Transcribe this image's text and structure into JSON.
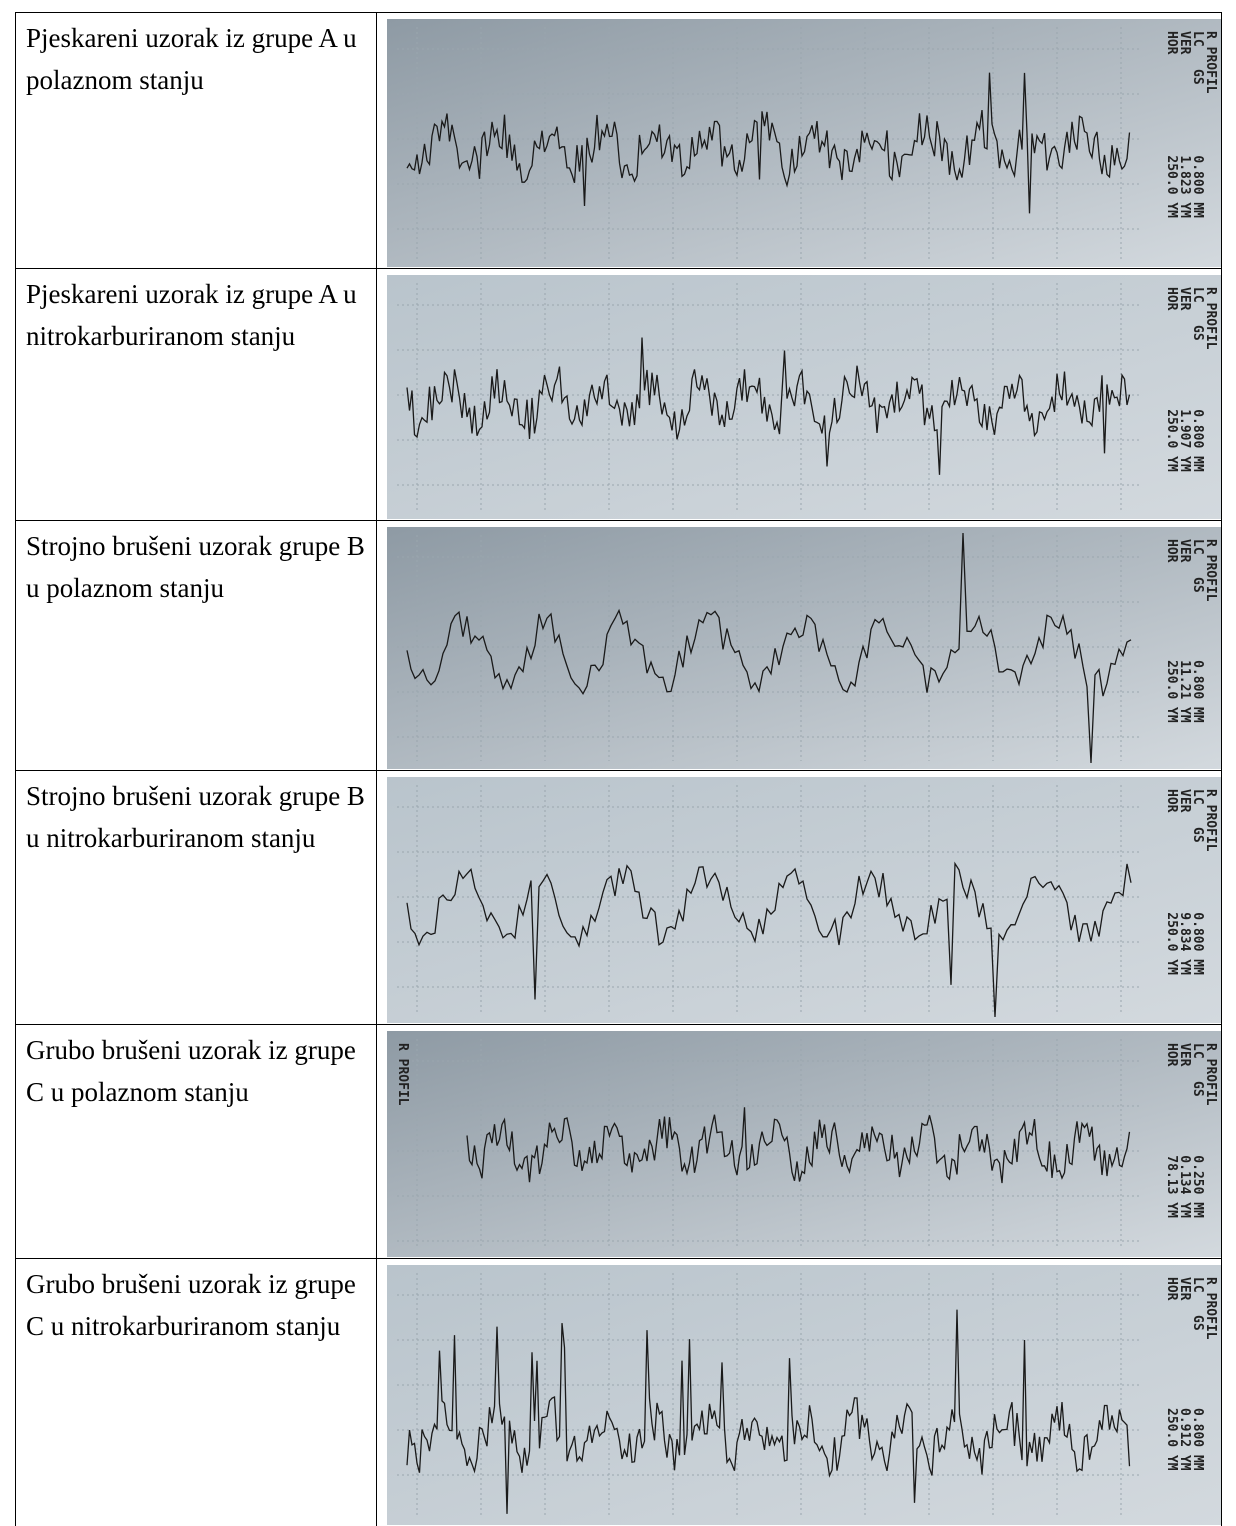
{
  "table": {
    "rows": [
      {
        "text": "Pjeskareni uzorak iz grupe A u polaznom stanju",
        "profile": {
          "labels": [
            "R PROFIL",
            "LC",
            "GS",
            "VER",
            "HOR"
          ],
          "values": [
            "0.800 MM",
            "1.823 YM",
            "250.0 YM"
          ]
        }
      },
      {
        "text": "Pjeskareni uzorak iz grupe A u nitrokarburiranom stanju",
        "profile": {
          "labels": [
            "R PROFIL",
            "LC",
            "GS",
            "VER",
            "HOR"
          ],
          "values": [
            "0.800 MM",
            "1.907 YM",
            "250.0 YM"
          ]
        }
      },
      {
        "text": "Strojno brušeni uzorak grupe B u polaznom stanju",
        "profile": {
          "labels": [
            "R PROFIL",
            "LC",
            "GS",
            "VER",
            "HOR"
          ],
          "values": [
            "0.800 MM",
            "11.21 YM",
            "250.0 YM"
          ]
        }
      },
      {
        "text": "Strojno brušeni uzorak grupe B u nitrokarburiranom stanju",
        "profile": {
          "labels": [
            "R PROFIL",
            "LC",
            "GS",
            "VER",
            "HOR"
          ],
          "values": [
            "0.800 MM",
            "9.834 YM",
            "250.0 YM"
          ]
        }
      },
      {
        "text": "Grubo brušeni uzorak iz grupe C u polaznom stanju",
        "profile": {
          "labels": [
            "R PROFIL",
            "LC",
            "GS",
            "VER",
            "HOR"
          ],
          "values": [
            "0.250 MM",
            "0.134 YM",
            "78.13 YM"
          ],
          "left_label": "R PROFIL"
        }
      },
      {
        "text": "Grubo brušeni uzorak iz grupe C u nitrokarburiranom stanju",
        "profile": {
          "labels": [
            "R PROFIL",
            "LC",
            "GS",
            "VER",
            "HOR"
          ],
          "values": [
            "0.800 MM",
            "0.912 YM",
            "250.0 YM"
          ]
        }
      }
    ]
  }
}
